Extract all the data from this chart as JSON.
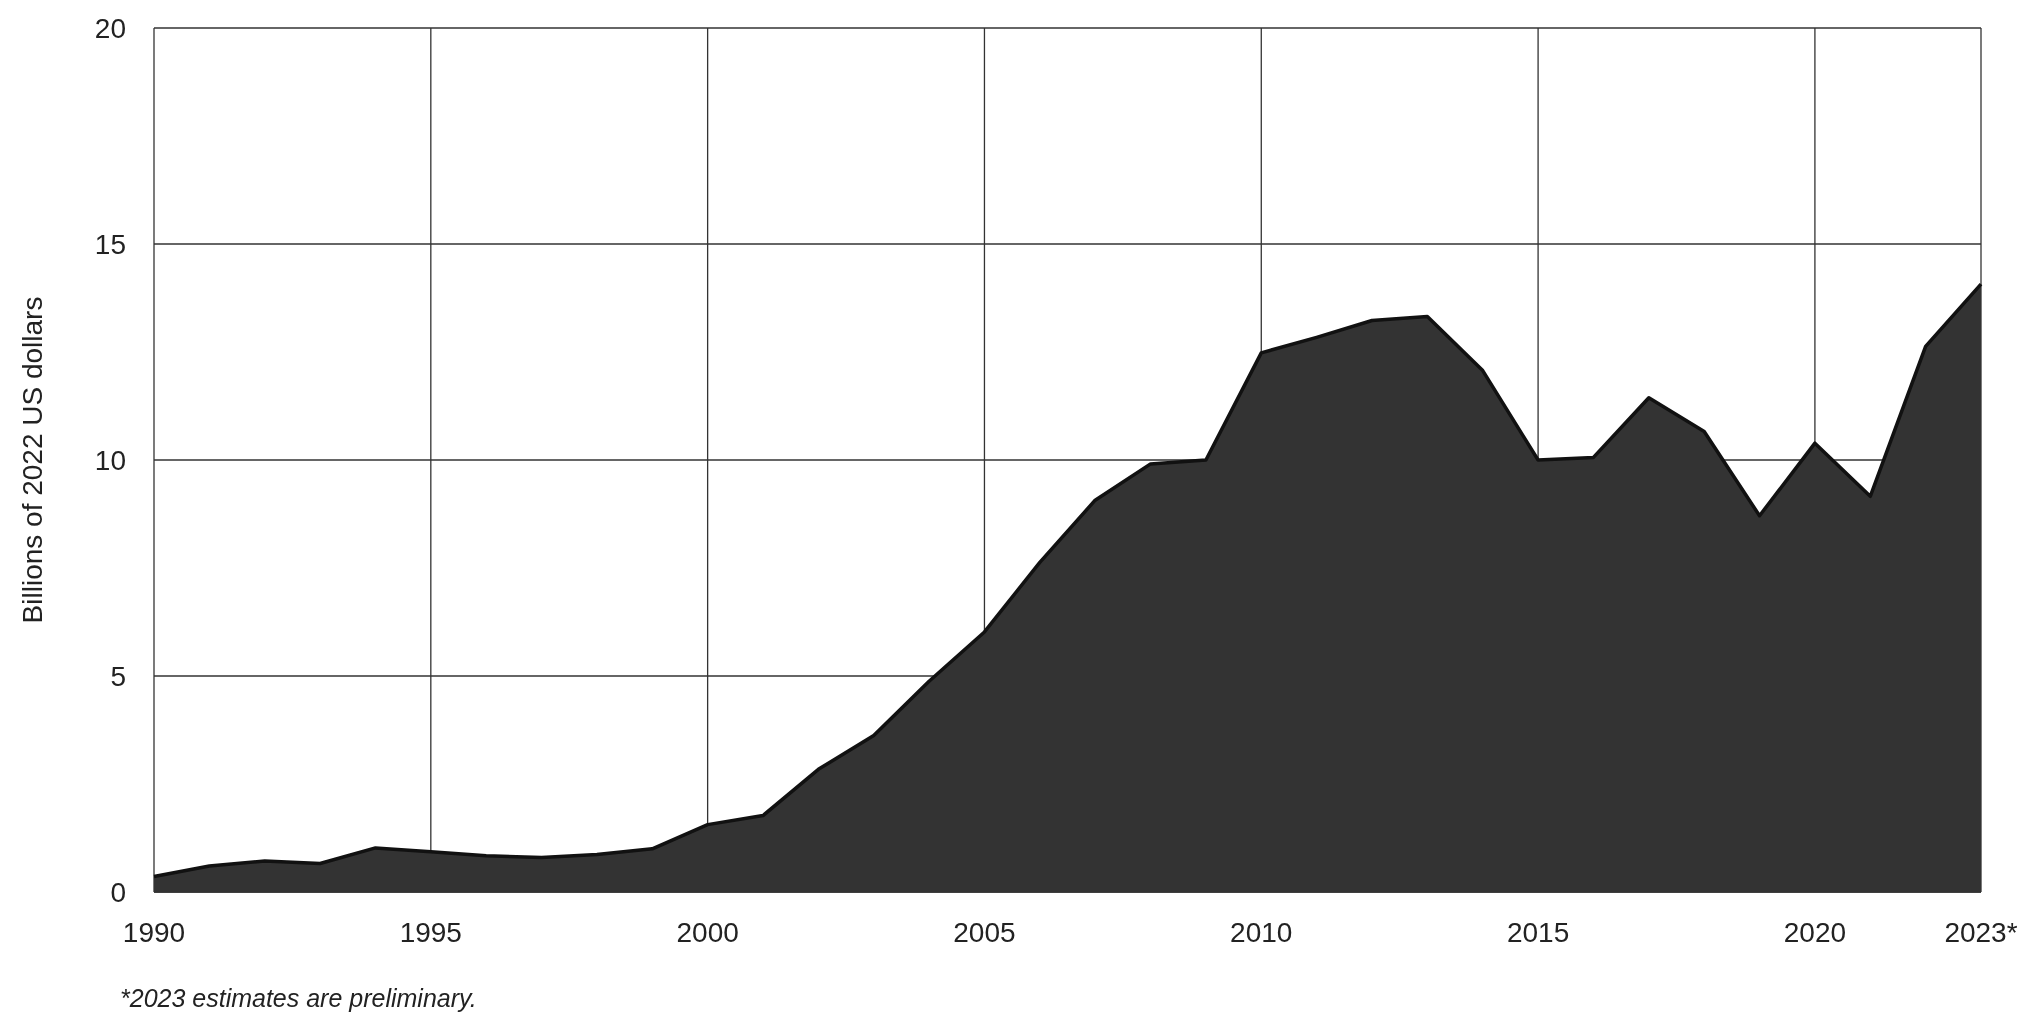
{
  "chart_data": {
    "type": "area",
    "ylabel": "Billions of 2022 US dollars",
    "annotations": [
      "*2023 estimates are preliminary."
    ],
    "x": [
      1990,
      1991,
      1992,
      1993,
      1994,
      1995,
      1996,
      1997,
      1998,
      1999,
      2000,
      2001,
      2002,
      2003,
      2004,
      2005,
      2006,
      2007,
      2008,
      2009,
      2010,
      2011,
      2012,
      2013,
      2014,
      2015,
      2016,
      2017,
      2018,
      2019,
      2020,
      2021,
      2022,
      2023
    ],
    "series": [
      {
        "color": "#333333",
        "values": [
          0.36,
          0.6,
          0.72,
          0.66,
          1.02,
          0.93,
          0.84,
          0.8,
          0.87,
          1.0,
          1.56,
          1.77,
          2.84,
          3.62,
          4.88,
          6.02,
          7.63,
          9.07,
          9.91,
          10.0,
          12.48,
          12.84,
          13.23,
          13.32,
          12.07,
          10.0,
          10.06,
          11.44,
          10.66,
          8.71,
          10.39,
          9.16,
          12.63,
          14.07
        ]
      }
    ],
    "xlim": [
      1990,
      2023
    ],
    "xticks": [
      1990,
      1995,
      2000,
      2005,
      2010,
      2015,
      2020,
      {
        "value": 2023,
        "label": "2023*"
      }
    ],
    "ylim": [
      0,
      20
    ],
    "yticks": [
      0,
      5,
      10,
      15,
      20
    ],
    "grid": true
  }
}
